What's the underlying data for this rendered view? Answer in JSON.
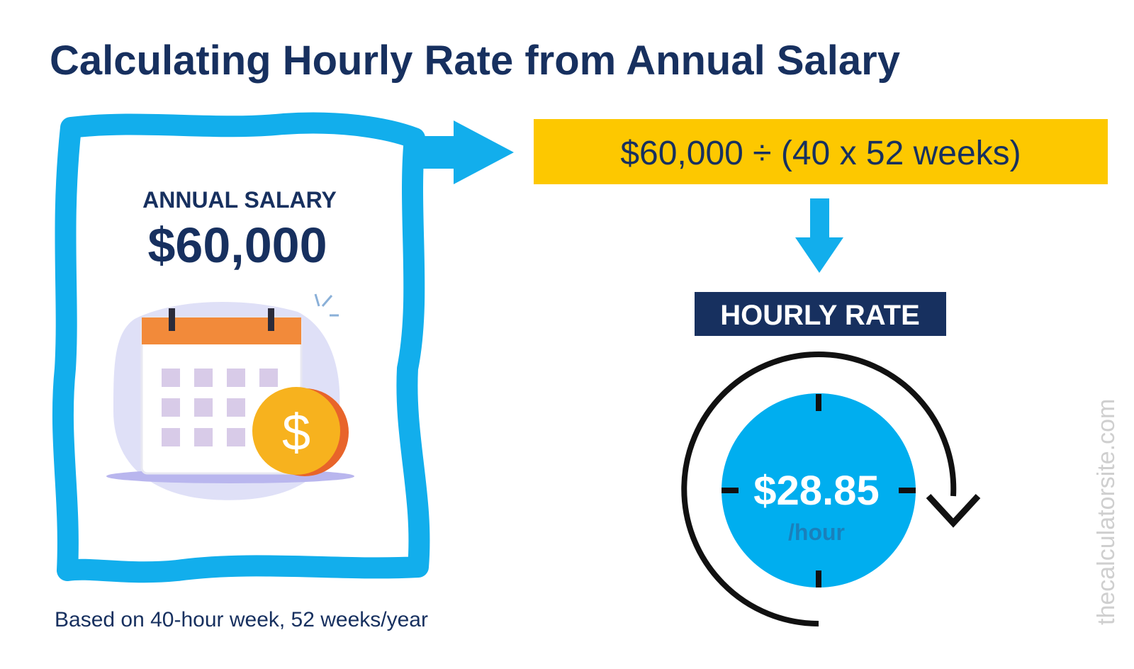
{
  "title": "Calculating Hourly Rate from Annual Salary",
  "salary_card": {
    "label": "ANNUAL SALARY",
    "amount": "$60,000"
  },
  "formula": "$60,000 ÷ (40 x 52 weeks)",
  "result": {
    "label": "HOURLY RATE",
    "value": "$28.85",
    "unit": "/hour"
  },
  "footnote": "Based on 40-hour week, 52 weeks/year",
  "watermark": "thecalculatorsite.com"
}
